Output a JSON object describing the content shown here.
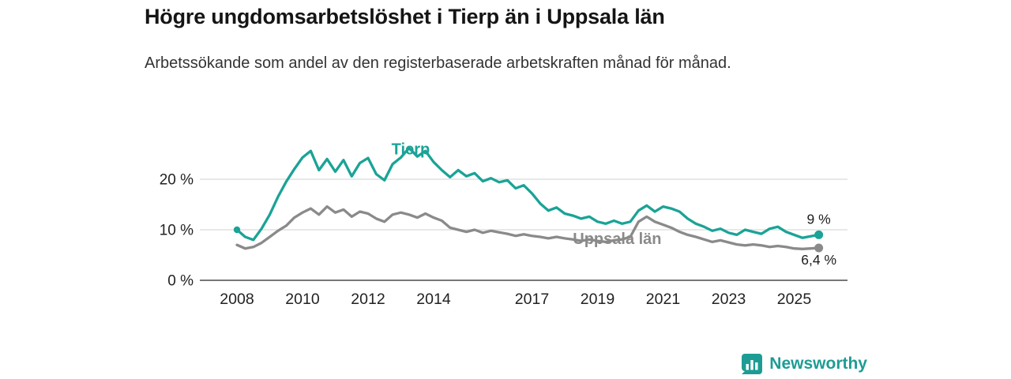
{
  "title": "Högre ungdomsarbetslöshet i Tierp än i Uppsala län",
  "subtitle": "Arbetssökande som andel av den registerbaserade arbetskraften månad för månad.",
  "branding": {
    "name": "Newsworthy",
    "color": "#1d9c94",
    "icon": "bar-chart-icon"
  },
  "chart_data": {
    "type": "line",
    "x_start": 2008,
    "x_step": 0.25,
    "x_unit": "year (monthly data shown, values in % of labour force)",
    "grid": "horizontal",
    "ylim": [
      0,
      27.5
    ],
    "xlim": [
      2007.9,
      2026.2
    ],
    "yticks": [
      {
        "value": 0,
        "label": "0 %"
      },
      {
        "value": 10,
        "label": "10 %"
      },
      {
        "value": 20,
        "label": "20 %"
      }
    ],
    "xticks": [
      {
        "value": 2008,
        "label": "2008"
      },
      {
        "value": 2010,
        "label": "2010"
      },
      {
        "value": 2012,
        "label": "2012"
      },
      {
        "value": 2014,
        "label": "2014"
      },
      {
        "value": 2017,
        "label": "2017"
      },
      {
        "value": 2019,
        "label": "2019"
      },
      {
        "value": 2021,
        "label": "2021"
      },
      {
        "value": 2023,
        "label": "2023"
      },
      {
        "value": 2025,
        "label": "2025"
      }
    ],
    "series": [
      {
        "name": "Tierp",
        "color": "#1aa396",
        "end_label": "9 %",
        "end_label_dy": -14,
        "start_dot": true,
        "label_at": {
          "x": 2013.3,
          "y": 24.9
        },
        "values": [
          10.0,
          8.6,
          8.0,
          10.2,
          13.0,
          16.5,
          19.5,
          22.0,
          24.3,
          25.6,
          21.8,
          24.0,
          21.5,
          23.8,
          20.6,
          23.2,
          24.2,
          21.0,
          19.8,
          23.0,
          24.3,
          26.2,
          24.5,
          25.6,
          23.4,
          21.8,
          20.4,
          21.8,
          20.6,
          21.2,
          19.6,
          20.2,
          19.4,
          19.8,
          18.2,
          18.8,
          17.2,
          15.2,
          13.8,
          14.4,
          13.2,
          12.8,
          12.2,
          12.6,
          11.6,
          11.2,
          11.8,
          11.2,
          11.6,
          13.8,
          14.8,
          13.6,
          14.6,
          14.2,
          13.6,
          12.2,
          11.2,
          10.6,
          9.8,
          10.2,
          9.4,
          9.0,
          10.0,
          9.6,
          9.2,
          10.2,
          10.6,
          9.6,
          9.0,
          8.4,
          8.7,
          9.0
        ]
      },
      {
        "name": "Uppsala län",
        "color": "#8a8a8a",
        "end_label": "6,4 %",
        "end_label_dy": 21,
        "start_dot": false,
        "label_at": {
          "x": 2019.6,
          "y": 7.2
        },
        "values": [
          7.0,
          6.3,
          6.6,
          7.4,
          8.6,
          9.8,
          10.8,
          12.4,
          13.4,
          14.2,
          13.0,
          14.6,
          13.4,
          14.0,
          12.6,
          13.6,
          13.2,
          12.2,
          11.6,
          13.0,
          13.4,
          13.0,
          12.4,
          13.2,
          12.4,
          11.8,
          10.4,
          10.0,
          9.6,
          10.0,
          9.4,
          9.8,
          9.5,
          9.2,
          8.8,
          9.1,
          8.8,
          8.6,
          8.3,
          8.6,
          8.3,
          8.1,
          7.8,
          8.1,
          7.8,
          7.6,
          7.9,
          8.1,
          8.6,
          11.6,
          12.6,
          11.6,
          11.0,
          10.4,
          9.6,
          9.0,
          8.6,
          8.1,
          7.6,
          7.9,
          7.5,
          7.1,
          6.9,
          7.1,
          6.9,
          6.6,
          6.8,
          6.6,
          6.3,
          6.2,
          6.3,
          6.4
        ]
      }
    ]
  }
}
